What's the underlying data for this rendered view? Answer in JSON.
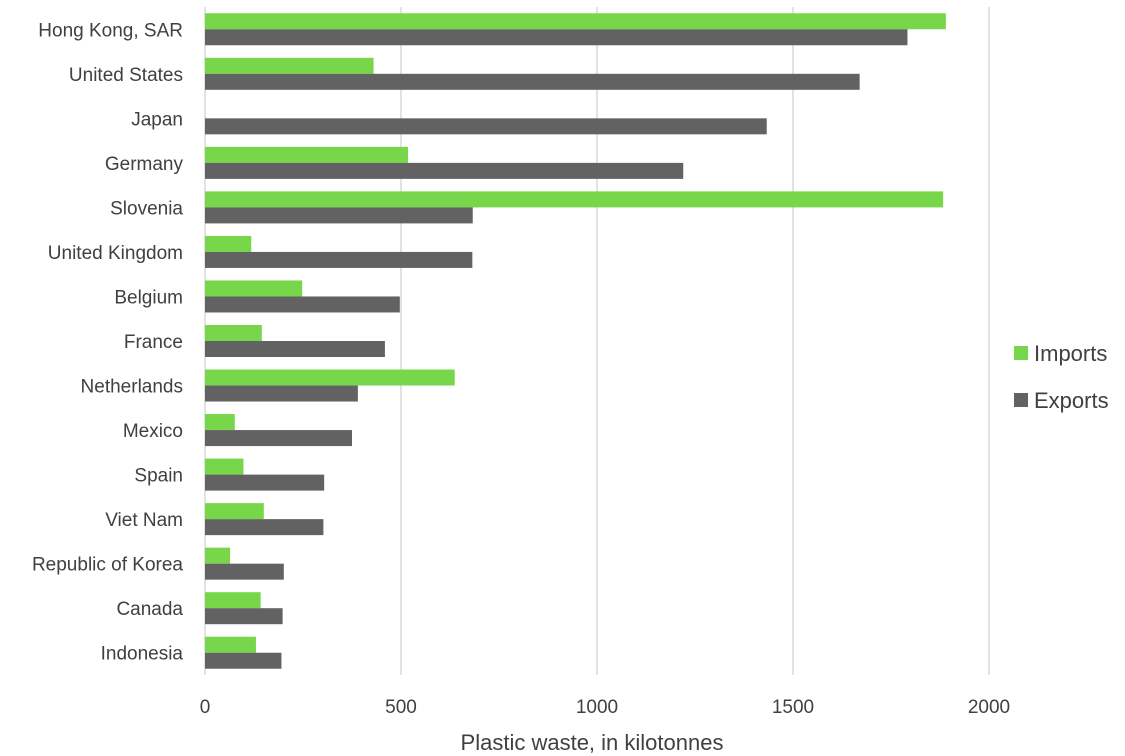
{
  "chart_data": {
    "type": "bar",
    "orientation": "horizontal",
    "categories": [
      "Hong Kong, SAR",
      "United States",
      "Japan",
      "Germany",
      "Slovenia",
      "United Kingdom",
      "Belgium",
      "France",
      "Netherlands",
      "Mexico",
      "Spain",
      "Viet Nam",
      "Republic of Korea",
      "Canada",
      "Indonesia"
    ],
    "series": [
      {
        "name": "Imports",
        "color": "#77d64a",
        "values": [
          1890,
          430,
          0,
          518,
          1883,
          118,
          248,
          145,
          637,
          76,
          98,
          150,
          64,
          142,
          130
        ]
      },
      {
        "name": "Exports",
        "color": "#626262",
        "values": [
          1792,
          1670,
          1433,
          1220,
          683,
          682,
          497,
          459,
          390,
          375,
          304,
          302,
          201,
          198,
          195
        ]
      }
    ],
    "xlabel": "Plastic waste, in kilotonnes",
    "ylabel": "",
    "title": "",
    "xlim": [
      0,
      2000
    ],
    "xticks": [
      "0",
      "500",
      "1000",
      "1500",
      "2000"
    ],
    "grid": "vertical",
    "legend_position": "right"
  }
}
